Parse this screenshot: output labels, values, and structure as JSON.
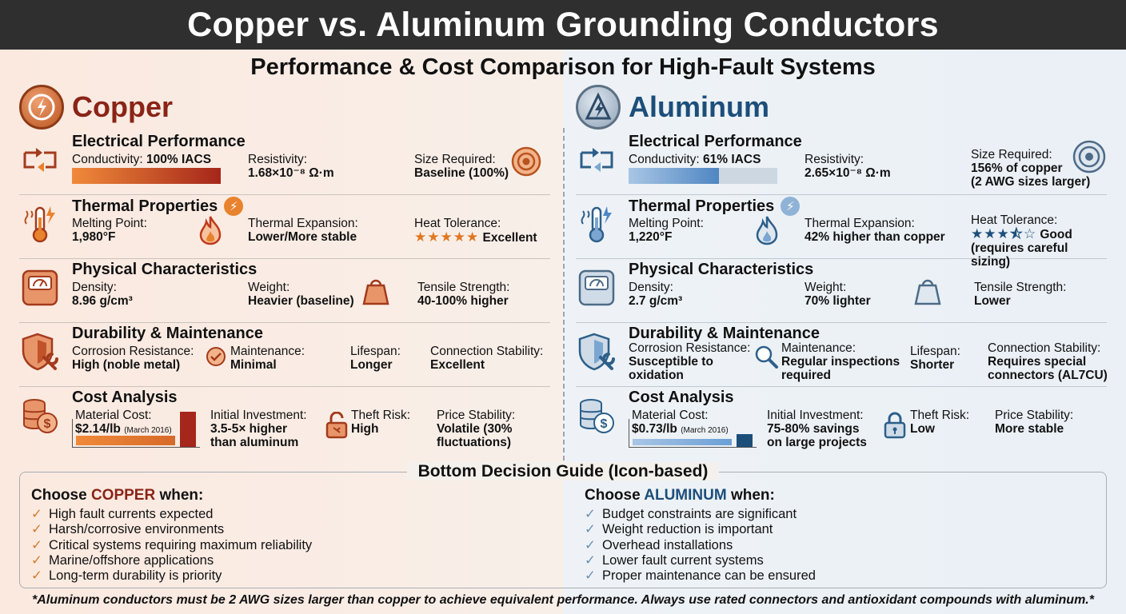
{
  "title": "Copper vs. Aluminum Grounding Conductors",
  "subtitle": "Performance & Cost Comparison for High-Fault Systems",
  "copper": {
    "name": "Copper",
    "electrical": {
      "title": "Electrical Performance",
      "conductivity_label": "Conductivity:",
      "conductivity_value": "100% IACS",
      "conductivity_fraction": 1.0,
      "resistivity_label": "Resistivity:",
      "resistivity_value": "1.68×10⁻⁸ Ω·m",
      "size_label": "Size Required:",
      "size_value": "Baseline (100%)"
    },
    "thermal": {
      "title": "Thermal Properties",
      "melting_label": "Melting Point:",
      "melting_value": "1,980°F",
      "expansion_label": "Thermal Expansion:",
      "expansion_value": "Lower/More stable",
      "heat_label": "Heat Tolerance:",
      "heat_stars": "★★★★★",
      "heat_value": "Excellent"
    },
    "physical": {
      "title": "Physical Characteristics",
      "density_label": "Density:",
      "density_value": "8.96 g/cm³",
      "weight_label": "Weight:",
      "weight_value": "Heavier (baseline)",
      "tensile_label": "Tensile Strength:",
      "tensile_value": "40-100% higher"
    },
    "durability": {
      "title": "Durability & Maintenance",
      "corrosion_label": "Corrosion Resistance:",
      "corrosion_value": "High (noble metal)",
      "maintenance_label": "Maintenance:",
      "maintenance_value": "Minimal",
      "lifespan_label": "Lifespan:",
      "lifespan_value": "Longer",
      "connection_label": "Connection Stability:",
      "connection_value": "Excellent"
    },
    "cost": {
      "title": "Cost Analysis",
      "material_label": "Material Cost:",
      "material_value": "$2.14/lb",
      "material_date": "(March 2016)",
      "investment_label": "Initial Investment:",
      "investment_value": "3.5-5× higher than aluminum",
      "theft_label": "Theft Risk:",
      "theft_value": "High",
      "price_label": "Price Stability:",
      "price_value": "Volatile (30% fluctuations)"
    }
  },
  "aluminum": {
    "name": "Aluminum",
    "electrical": {
      "title": "Electrical Performance",
      "conductivity_label": "Conductivity:",
      "conductivity_value": "61% IACS",
      "conductivity_fraction": 0.61,
      "resistivity_label": "Resistivity:",
      "resistivity_value": "2.65×10⁻⁸ Ω·m",
      "size_label": "Size Required:",
      "size_value": "156% of copper",
      "size_note": "(2 AWG sizes larger)"
    },
    "thermal": {
      "title": "Thermal Properties",
      "melting_label": "Melting Point:",
      "melting_value": "1,220°F",
      "expansion_label": "Thermal Expansion:",
      "expansion_value": "42% higher than copper",
      "heat_label": "Heat Tolerance:",
      "heat_stars": "★★★⯪☆",
      "heat_value": "Good",
      "heat_note": "(requires careful sizing)"
    },
    "physical": {
      "title": "Physical Characteristics",
      "density_label": "Density:",
      "density_value": "2.7 g/cm³",
      "weight_label": "Weight:",
      "weight_value": "70% lighter",
      "tensile_label": "Tensile Strength:",
      "tensile_value": "Lower"
    },
    "durability": {
      "title": "Durability & Maintenance",
      "corrosion_label": "Corrosion Resistance:",
      "corrosion_value": "Susceptible to oxidation",
      "maintenance_label": "Maintenance:",
      "maintenance_value": "Regular inspections required",
      "lifespan_label": "Lifespan:",
      "lifespan_value": "Shorter",
      "connection_label": "Connection Stability:",
      "connection_value": "Requires special connectors (AL7CU)"
    },
    "cost": {
      "title": "Cost Analysis",
      "material_label": "Material Cost:",
      "material_value": "$0.73/lb",
      "material_date": "(March 2016)",
      "investment_label": "Initial Investment:",
      "investment_value": "75-80% savings on large projects",
      "theft_label": "Theft Risk:",
      "theft_value": "Low",
      "price_label": "Price Stability:",
      "price_value": "More stable"
    }
  },
  "decision": {
    "title": "Bottom Decision Guide (Icon-based)",
    "copper_prefix": "Choose ",
    "copper_word": "COPPER",
    "copper_suffix": " when:",
    "copper_items": [
      "High fault currents expected",
      "Harsh/corrosive environments",
      "Critical systems requiring maximum reliability",
      "Marine/offshore applications",
      "Long-term durability is priority"
    ],
    "aluminum_prefix": "Choose ",
    "aluminum_word": "ALUMINUM",
    "aluminum_suffix": " when:",
    "aluminum_items": [
      "Budget constraints are significant",
      "Weight reduction is important",
      "Overhead installations",
      "Lower fault current systems",
      "Proper maintenance can be ensured"
    ],
    "check_glyph": "✓"
  },
  "footnote": "*Aluminum conductors must be 2 AWG sizes larger than copper to achieve equivalent performance. Always use rated connectors and antioxidant compounds with aluminum.*",
  "colors": {
    "copper_accent": "#8a2416",
    "copper_bar": "#e8822d",
    "aluminum_accent": "#1c4e7a",
    "aluminum_bar": "#6a9fd6"
  }
}
